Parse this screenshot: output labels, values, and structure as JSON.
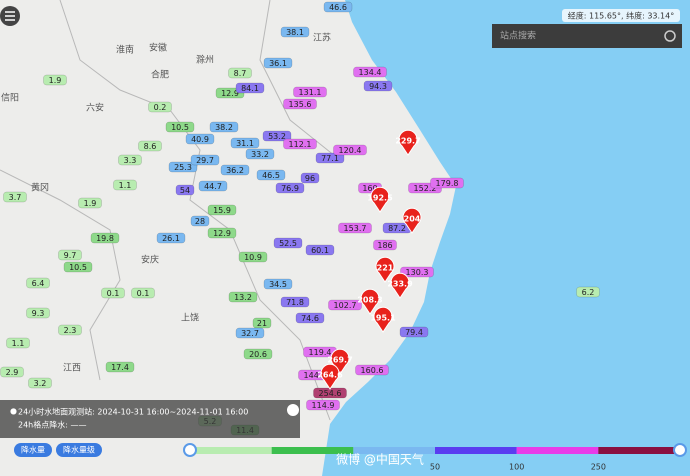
{
  "coords": "经度: 115.65°, 纬度: 33.14°",
  "search_placeholder": "站点搜索",
  "info": {
    "line1": "24小时水地面观测站: 2024-10-31 16:00~2024-11-01 16:00",
    "line2": "24h格点降水: ——"
  },
  "buttons": [
    "降水量",
    "降水量级"
  ],
  "legend": {
    "ticks": [
      50,
      100,
      250
    ],
    "colors": [
      "#b8ecb0",
      "#3cbf4e",
      "#7ab8f0",
      "#5a3cf0",
      "#e83ce8",
      "#8a1040"
    ]
  },
  "watermark": "微博 @中国天气",
  "places": [
    "安徽",
    "江苏",
    "淮南",
    "滁州",
    "合肥",
    "六安",
    "信阳",
    "黄冈",
    "安庆",
    "江西",
    "上饶"
  ],
  "stations": [
    {
      "value": 1.9,
      "color": "#b8ecb0"
    },
    {
      "value": 0.2,
      "color": "#b8ecb0"
    },
    {
      "value": 10.5,
      "color": "#8ed98a"
    },
    {
      "value": 8.6,
      "color": "#b8ecb0"
    },
    {
      "value": 3.3,
      "color": "#b8ecb0"
    },
    {
      "value": 1.1,
      "color": "#b8ecb0"
    },
    {
      "value": 1.9,
      "color": "#b8ecb0"
    },
    {
      "value": 3.7,
      "color": "#b8ecb0"
    },
    {
      "value": 19.8,
      "color": "#8ed98a"
    },
    {
      "value": 9.7,
      "color": "#b8ecb0"
    },
    {
      "value": 10.5,
      "color": "#8ed98a"
    },
    {
      "value": 6.4,
      "color": "#b8ecb0"
    },
    {
      "value": 0.1,
      "color": "#b8ecb0"
    },
    {
      "value": 0.1,
      "color": "#b8ecb0"
    },
    {
      "value": 9.3,
      "color": "#b8ecb0"
    },
    {
      "value": 2.3,
      "color": "#b8ecb0"
    },
    {
      "value": 1.1,
      "color": "#b8ecb0"
    },
    {
      "value": 17.4,
      "color": "#8ed98a"
    },
    {
      "value": 3.2,
      "color": "#b8ecb0"
    },
    {
      "value": 2.9,
      "color": "#b8ecb0"
    },
    {
      "value": 11.4,
      "color": "#8ed98a"
    },
    {
      "value": 5.2,
      "color": "#b8ecb0"
    },
    {
      "value": 12.9,
      "color": "#8ed98a"
    },
    {
      "value": 8.7,
      "color": "#b8ecb0"
    },
    {
      "value": 38.2,
      "color": "#7ab8f0"
    },
    {
      "value": 40.9,
      "color": "#7ab8f0"
    },
    {
      "value": 25.3,
      "color": "#7ab8f0"
    },
    {
      "value": 29.7,
      "color": "#7ab8f0"
    },
    {
      "value": 36.2,
      "color": "#7ab8f0"
    },
    {
      "value": 31.1,
      "color": "#7ab8f0"
    },
    {
      "value": 33.2,
      "color": "#7ab8f0"
    },
    {
      "value": 44.7,
      "color": "#7ab8f0"
    },
    {
      "value": 54,
      "color": "#8a78f0"
    },
    {
      "value": 28,
      "color": "#7ab8f0"
    },
    {
      "value": 26.1,
      "color": "#7ab8f0"
    },
    {
      "value": 15.9,
      "color": "#8ed98a"
    },
    {
      "value": 12.9,
      "color": "#8ed98a"
    },
    {
      "value": 10.9,
      "color": "#8ed98a"
    },
    {
      "value": 13.2,
      "color": "#8ed98a"
    },
    {
      "value": 21,
      "color": "#8ed98a"
    },
    {
      "value": 20.6,
      "color": "#8ed98a"
    },
    {
      "value": 32.7,
      "color": "#7ab8f0"
    },
    {
      "value": 46.5,
      "color": "#7ab8f0"
    },
    {
      "value": 52.5,
      "color": "#8a78f0"
    },
    {
      "value": 34.5,
      "color": "#7ab8f0"
    },
    {
      "value": 53.2,
      "color": "#8a78f0"
    },
    {
      "value": 112.1,
      "color": "#e070f0"
    },
    {
      "value": 76.9,
      "color": "#8a78f0"
    },
    {
      "value": 77.1,
      "color": "#8a78f0"
    },
    {
      "value": 96,
      "color": "#8a78f0"
    },
    {
      "value": 60.1,
      "color": "#8a78f0"
    },
    {
      "value": 71.8,
      "color": "#8a78f0"
    },
    {
      "value": 74.6,
      "color": "#8a78f0"
    },
    {
      "value": 119.4,
      "color": "#e070f0"
    },
    {
      "value": 144.1,
      "color": "#e070f0"
    },
    {
      "value": 102.7,
      "color": "#e070f0"
    },
    {
      "value": 134.4,
      "color": "#e070f0"
    },
    {
      "value": 94.3,
      "color": "#8a78f0"
    },
    {
      "value": 131.1,
      "color": "#e070f0"
    },
    {
      "value": 135.6,
      "color": "#e070f0"
    },
    {
      "value": 120.4,
      "color": "#e070f0"
    },
    {
      "value": 160,
      "color": "#e070f0"
    },
    {
      "value": 153.7,
      "color": "#e070f0"
    },
    {
      "value": 87.2,
      "color": "#8a78f0"
    },
    {
      "value": 186,
      "color": "#e070f0"
    },
    {
      "value": 152.2,
      "color": "#e070f0"
    },
    {
      "value": 179.8,
      "color": "#e070f0"
    },
    {
      "value": 130.3,
      "color": "#e070f0"
    },
    {
      "value": 79.4,
      "color": "#8a78f0"
    },
    {
      "value": 160.6,
      "color": "#e070f0"
    },
    {
      "value": 114.9,
      "color": "#e070f0"
    },
    {
      "value": 254.6,
      "color": "#b04070"
    },
    {
      "value": 46.6,
      "color": "#7ab8f0"
    },
    {
      "value": 38.1,
      "color": "#7ab8f0"
    },
    {
      "value": 36.1,
      "color": "#7ab8f0"
    },
    {
      "value": 84.1,
      "color": "#8a78f0"
    },
    {
      "value": 6.2,
      "color": "#b8ecb0"
    }
  ],
  "peaks": [
    229.7,
    192.5,
    204,
    221,
    233.9,
    208.3,
    195.1,
    269.7,
    264.6
  ]
}
